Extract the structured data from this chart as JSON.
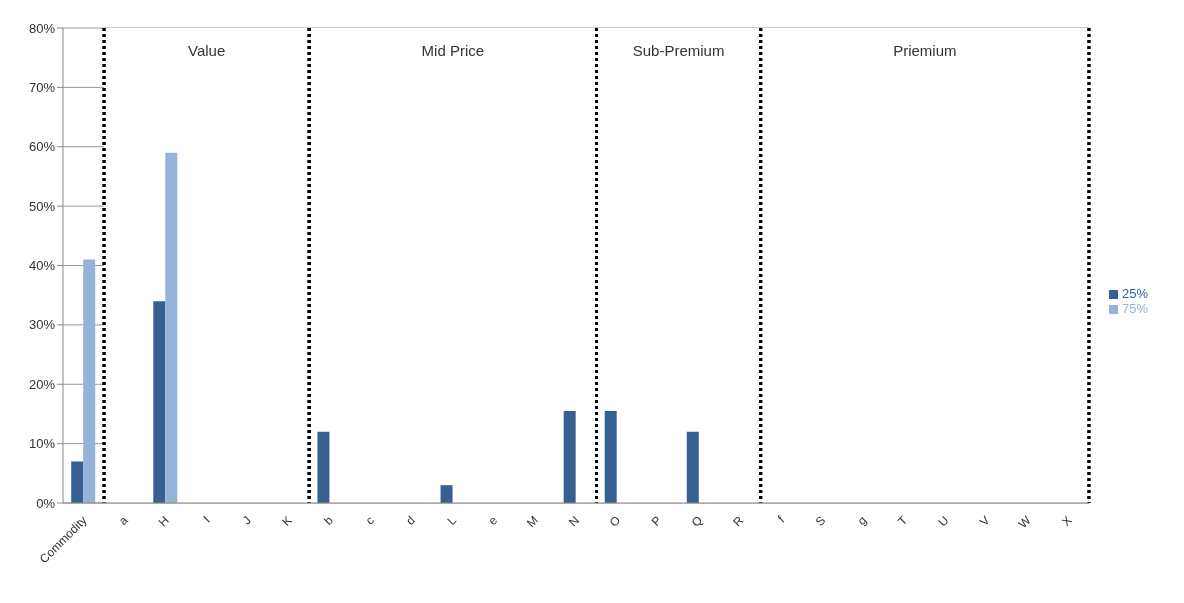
{
  "chart_data": {
    "type": "bar",
    "categories": [
      "Commodity",
      "a",
      "H",
      "I",
      "J",
      "K",
      "b",
      "c",
      "d",
      "L",
      "e",
      "M",
      "N",
      "O",
      "P",
      "Q",
      "R",
      "f",
      "S",
      "g",
      "T",
      "U",
      "V",
      "W",
      "X"
    ],
    "series": [
      {
        "name": "25%",
        "color": "#376092",
        "values": [
          7,
          0,
          34,
          0,
          0,
          0,
          12,
          0,
          0,
          3,
          0,
          0,
          15.5,
          15.5,
          0,
          12,
          0,
          0,
          0,
          0,
          0,
          0,
          0,
          0,
          0
        ]
      },
      {
        "name": "75%",
        "color": "#95b3d7",
        "values": [
          41,
          0,
          59,
          0,
          0,
          0,
          0,
          0,
          0,
          0,
          0,
          0,
          0,
          0,
          0,
          0,
          0,
          0,
          0,
          0,
          0,
          0,
          0,
          0,
          0
        ]
      }
    ],
    "ylim": [
      0,
      80
    ],
    "yticks": [
      {
        "value": 0,
        "label": "0%"
      },
      {
        "value": 10,
        "label": "10%"
      },
      {
        "value": 20,
        "label": "20%"
      },
      {
        "value": 30,
        "label": "30%"
      },
      {
        "value": 40,
        "label": "40%"
      },
      {
        "value": 50,
        "label": "50%"
      },
      {
        "value": 60,
        "label": "60%"
      },
      {
        "value": 70,
        "label": "70%"
      },
      {
        "value": 80,
        "label": "80%"
      }
    ],
    "grid": "y",
    "legend": "right",
    "bands": [
      {
        "axis": "x",
        "from": "a",
        "to": "K",
        "label": "Value",
        "color": "#ffffff"
      },
      {
        "axis": "x",
        "from": "b",
        "to": "N",
        "label": "Mid Price",
        "color": "#ffffff"
      },
      {
        "axis": "x",
        "from": "O",
        "to": "R",
        "label": "Sub-Premium",
        "color": "#ffffff"
      },
      {
        "axis": "x",
        "from": "f",
        "to": "X",
        "label": "Priemium",
        "color": "#ffffff"
      }
    ]
  }
}
